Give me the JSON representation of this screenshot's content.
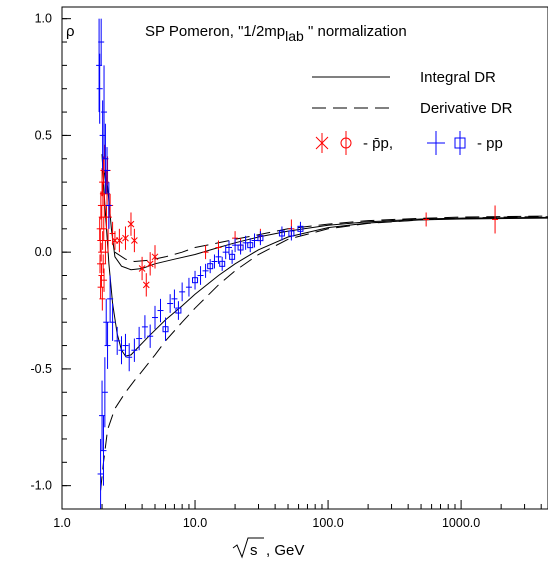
{
  "chart_data": {
    "type": "scatter",
    "title": "SP Pomeron, \"1/2mp",
    "title_subscript": "lab",
    "title_suffix": " \" normalization",
    "ylabel": "ρ",
    "xlabel_radical": "s",
    "xlabel_unit": ",  GeV",
    "x_scale": "log",
    "xlim": [
      1.0,
      4500
    ],
    "ylim": [
      -1.1,
      1.05
    ],
    "grid": false,
    "legend_position": "top-right",
    "x_ticks": [
      {
        "value": 1.0,
        "label": "1.0"
      },
      {
        "value": 10.0,
        "label": "10.0"
      },
      {
        "value": 100.0,
        "label": "100.0"
      },
      {
        "value": 1000.0,
        "label": "1000.0"
      }
    ],
    "y_ticks": [
      {
        "value": 1.0,
        "label": "1.0"
      },
      {
        "value": 0.5,
        "label": "0.5"
      },
      {
        "value": 0.0,
        "label": "0.0"
      },
      {
        "value": -0.5,
        "label": "-0.5"
      },
      {
        "value": -1.0,
        "label": "-1.0"
      }
    ],
    "legend": {
      "integral_label": "Integral DR",
      "derivative_label": "Derivative DR",
      "pbar_label": "- ",
      "pbar_symbol": "p̄p,",
      "pp_label": "- pp"
    },
    "colors": {
      "pbar": "#ff0000",
      "pp": "#0000ff",
      "curves": "#000000"
    },
    "curves": [
      {
        "style": "solid",
        "points": [
          [
            2.0,
            0.25
          ],
          [
            2.1,
            0.35
          ],
          [
            2.2,
            0.28
          ],
          [
            2.35,
            0.1
          ],
          [
            2.5,
            -0.02
          ],
          [
            2.8,
            -0.06
          ],
          [
            3.3,
            -0.075
          ],
          [
            4.0,
            -0.07
          ],
          [
            5.0,
            -0.05
          ],
          [
            7.0,
            -0.03
          ],
          [
            10,
            -0.01
          ],
          [
            15,
            0.02
          ],
          [
            20,
            0.04
          ],
          [
            30,
            0.065
          ],
          [
            50,
            0.09
          ],
          [
            100,
            0.115
          ],
          [
            200,
            0.13
          ],
          [
            500,
            0.142
          ],
          [
            1000,
            0.146
          ],
          [
            4500,
            0.149
          ]
        ]
      },
      {
        "style": "solid",
        "points": [
          [
            2.0,
            0.42
          ],
          [
            2.1,
            0.2
          ],
          [
            2.25,
            -0.05
          ],
          [
            2.4,
            -0.22
          ],
          [
            2.6,
            -0.35
          ],
          [
            2.8,
            -0.42
          ],
          [
            3.0,
            -0.445
          ],
          [
            3.3,
            -0.44
          ],
          [
            3.7,
            -0.41
          ],
          [
            4.5,
            -0.36
          ],
          [
            6,
            -0.29
          ],
          [
            8,
            -0.23
          ],
          [
            10,
            -0.18
          ],
          [
            15,
            -0.1
          ],
          [
            20,
            -0.05
          ],
          [
            30,
            0.01
          ],
          [
            50,
            0.065
          ],
          [
            100,
            0.105
          ],
          [
            200,
            0.125
          ],
          [
            500,
            0.138
          ],
          [
            1000,
            0.142
          ],
          [
            4500,
            0.146
          ]
        ]
      },
      {
        "style": "dashed",
        "points": [
          [
            1.95,
            -1.02
          ],
          [
            2.05,
            -0.9
          ],
          [
            2.2,
            -0.76
          ],
          [
            2.5,
            -0.67
          ],
          [
            3.0,
            -0.6
          ],
          [
            3.5,
            -0.55
          ],
          [
            4.0,
            -0.51
          ],
          [
            5.0,
            -0.44
          ],
          [
            6.0,
            -0.38
          ],
          [
            8.0,
            -0.3
          ],
          [
            10,
            -0.24
          ],
          [
            15,
            -0.14
          ],
          [
            20,
            -0.08
          ],
          [
            30,
            -0.01
          ],
          [
            50,
            0.055
          ],
          [
            100,
            0.1
          ],
          [
            200,
            0.123
          ],
          [
            500,
            0.138
          ],
          [
            1000,
            0.145
          ],
          [
            2000,
            0.15
          ],
          [
            4500,
            0.152
          ]
        ]
      },
      {
        "style": "dashed",
        "points": [
          [
            2.5,
            0.0
          ],
          [
            3.0,
            -0.03
          ],
          [
            3.5,
            -0.04
          ],
          [
            4.5,
            -0.035
          ],
          [
            6,
            -0.02
          ],
          [
            8,
            0.0
          ],
          [
            10,
            0.02
          ],
          [
            15,
            0.04
          ],
          [
            20,
            0.055
          ],
          [
            30,
            0.075
          ],
          [
            50,
            0.1
          ],
          [
            100,
            0.12
          ],
          [
            200,
            0.135
          ],
          [
            500,
            0.145
          ],
          [
            1000,
            0.15
          ],
          [
            4500,
            0.155
          ]
        ]
      }
    ],
    "series": [
      {
        "name": "p̄p",
        "marker": "mixed",
        "points": [
          {
            "x": 1.92,
            "y": 0.1,
            "e": 0.05
          },
          {
            "x": 1.93,
            "y": -0.05,
            "e": 0.04
          },
          {
            "x": 1.94,
            "y": 0.05,
            "e": 0.05
          },
          {
            "x": 1.95,
            "y": -0.15,
            "e": 0.05
          },
          {
            "x": 1.96,
            "y": 0.2,
            "e": 0.06
          },
          {
            "x": 1.97,
            "y": 0.0,
            "e": 0.04
          },
          {
            "x": 1.98,
            "y": -0.1,
            "e": 0.05
          },
          {
            "x": 1.99,
            "y": 0.15,
            "e": 0.05
          },
          {
            "x": 2.0,
            "y": 0.3,
            "e": 0.06
          },
          {
            "x": 2.01,
            "y": -0.2,
            "e": 0.05
          },
          {
            "x": 2.02,
            "y": 0.05,
            "e": 0.04
          },
          {
            "x": 2.03,
            "y": 0.25,
            "e": 0.05
          },
          {
            "x": 2.04,
            "y": -0.05,
            "e": 0.04
          },
          {
            "x": 2.05,
            "y": 0.35,
            "e": 0.06
          },
          {
            "x": 2.06,
            "y": 0.1,
            "e": 0.05
          },
          {
            "x": 2.07,
            "y": -0.12,
            "e": 0.05
          },
          {
            "x": 2.08,
            "y": 0.2,
            "e": 0.05
          },
          {
            "x": 2.1,
            "y": 0.4,
            "e": 0.06
          },
          {
            "x": 2.12,
            "y": 0.0,
            "e": 0.05
          },
          {
            "x": 2.14,
            "y": 0.3,
            "e": 0.05
          },
          {
            "x": 2.16,
            "y": 0.15,
            "e": 0.05
          },
          {
            "x": 2.18,
            "y": 0.25,
            "e": 0.05
          },
          {
            "x": 2.2,
            "y": 0.35,
            "e": 0.06
          },
          {
            "x": 2.22,
            "y": 0.05,
            "e": 0.05
          },
          {
            "x": 2.25,
            "y": 0.15,
            "e": 0.05
          },
          {
            "x": 2.3,
            "y": 0.2,
            "e": 0.05
          },
          {
            "x": 2.4,
            "y": 0.08,
            "e": 0.05
          },
          {
            "x": 2.5,
            "y": 0.05,
            "e": 0.04,
            "m": "x"
          },
          {
            "x": 2.7,
            "y": 0.05,
            "e": 0.05,
            "m": "x"
          },
          {
            "x": 3.0,
            "y": 0.06,
            "e": 0.05,
            "m": "x"
          },
          {
            "x": 3.3,
            "y": 0.12,
            "e": 0.05,
            "m": "x"
          },
          {
            "x": 3.5,
            "y": 0.05,
            "e": 0.05,
            "m": "x"
          },
          {
            "x": 4.0,
            "y": -0.07,
            "e": 0.05,
            "m": "x"
          },
          {
            "x": 4.3,
            "y": -0.14,
            "e": 0.05,
            "m": "x"
          },
          {
            "x": 4.6,
            "y": -0.05,
            "e": 0.05,
            "m": "x"
          },
          {
            "x": 5.0,
            "y": -0.02,
            "e": 0.05,
            "m": "x"
          },
          {
            "x": 12,
            "y": 0.0,
            "e": 0.03
          },
          {
            "x": 15,
            "y": 0.02,
            "e": 0.03
          },
          {
            "x": 20,
            "y": 0.06,
            "e": 0.03
          },
          {
            "x": 22,
            "y": 0.03,
            "e": 0.03
          },
          {
            "x": 31,
            "y": 0.07,
            "e": 0.03
          },
          {
            "x": 53,
            "y": 0.1,
            "e": 0.04
          },
          {
            "x": 546,
            "y": 0.14,
            "e": 0.03
          },
          {
            "x": 1800,
            "y": 0.14,
            "e": 0.06
          }
        ]
      },
      {
        "name": "pp",
        "marker": "mixed",
        "points": [
          {
            "x": 1.9,
            "y": 0.8,
            "e": 0.2
          },
          {
            "x": 1.92,
            "y": 0.7,
            "e": 0.15
          },
          {
            "x": 1.95,
            "y": -0.95,
            "e": 0.15
          },
          {
            "x": 1.97,
            "y": 0.9,
            "e": 0.1
          },
          {
            "x": 2.0,
            "y": -0.7,
            "e": 0.15
          },
          {
            "x": 2.02,
            "y": 0.5,
            "e": 0.15
          },
          {
            "x": 2.05,
            "y": -0.85,
            "e": 0.15
          },
          {
            "x": 2.07,
            "y": 0.6,
            "e": 0.2
          },
          {
            "x": 2.1,
            "y": -0.6,
            "e": 0.15
          },
          {
            "x": 2.12,
            "y": 0.4,
            "e": 0.15
          },
          {
            "x": 2.15,
            "y": -0.3,
            "e": 0.1
          },
          {
            "x": 2.18,
            "y": 0.35,
            "e": 0.1
          },
          {
            "x": 2.2,
            "y": -0.4,
            "e": 0.1
          },
          {
            "x": 2.25,
            "y": 0.2,
            "e": 0.1
          },
          {
            "x": 2.3,
            "y": -0.2,
            "e": 0.1
          },
          {
            "x": 2.4,
            "y": -0.3,
            "e": 0.08
          },
          {
            "x": 2.6,
            "y": -0.38,
            "e": 0.06
          },
          {
            "x": 2.8,
            "y": -0.42,
            "e": 0.06
          },
          {
            "x": 3.0,
            "y": -0.4,
            "e": 0.05
          },
          {
            "x": 3.2,
            "y": -0.45,
            "e": 0.06
          },
          {
            "x": 3.5,
            "y": -0.42,
            "e": 0.05
          },
          {
            "x": 3.8,
            "y": -0.37,
            "e": 0.05
          },
          {
            "x": 4.2,
            "y": -0.32,
            "e": 0.05
          },
          {
            "x": 4.6,
            "y": -0.36,
            "e": 0.05
          },
          {
            "x": 5.0,
            "y": -0.28,
            "e": 0.05
          },
          {
            "x": 5.5,
            "y": -0.25,
            "e": 0.05
          },
          {
            "x": 6.0,
            "y": -0.33,
            "e": 0.05,
            "m": "sq"
          },
          {
            "x": 6.5,
            "y": -0.22,
            "e": 0.04
          },
          {
            "x": 7.0,
            "y": -0.2,
            "e": 0.04
          },
          {
            "x": 7.5,
            "y": -0.25,
            "e": 0.04,
            "m": "sq"
          },
          {
            "x": 8.0,
            "y": -0.17,
            "e": 0.04
          },
          {
            "x": 9.0,
            "y": -0.15,
            "e": 0.04
          },
          {
            "x": 10,
            "y": -0.12,
            "e": 0.04,
            "m": "sq"
          },
          {
            "x": 11,
            "y": -0.1,
            "e": 0.04
          },
          {
            "x": 12,
            "y": -0.08,
            "e": 0.03
          },
          {
            "x": 13,
            "y": -0.06,
            "e": 0.03,
            "m": "sq"
          },
          {
            "x": 14,
            "y": -0.04,
            "e": 0.03
          },
          {
            "x": 15,
            "y": -0.02,
            "e": 0.03
          },
          {
            "x": 16,
            "y": -0.05,
            "e": 0.03,
            "m": "sq"
          },
          {
            "x": 17,
            "y": 0.0,
            "e": 0.03
          },
          {
            "x": 18,
            "y": 0.02,
            "e": 0.03
          },
          {
            "x": 19,
            "y": -0.02,
            "e": 0.03,
            "m": "sq"
          },
          {
            "x": 20,
            "y": 0.03,
            "e": 0.03
          },
          {
            "x": 22,
            "y": 0.02,
            "e": 0.03,
            "m": "sq"
          },
          {
            "x": 24,
            "y": 0.04,
            "e": 0.03
          },
          {
            "x": 26,
            "y": 0.03,
            "e": 0.03,
            "m": "sq"
          },
          {
            "x": 28,
            "y": 0.05,
            "e": 0.03
          },
          {
            "x": 31,
            "y": 0.06,
            "e": 0.03,
            "m": "sq"
          },
          {
            "x": 45,
            "y": 0.08,
            "e": 0.03,
            "m": "sq"
          },
          {
            "x": 53,
            "y": 0.08,
            "e": 0.03,
            "m": "sq"
          },
          {
            "x": 62,
            "y": 0.1,
            "e": 0.03,
            "m": "sq"
          }
        ]
      }
    ]
  }
}
